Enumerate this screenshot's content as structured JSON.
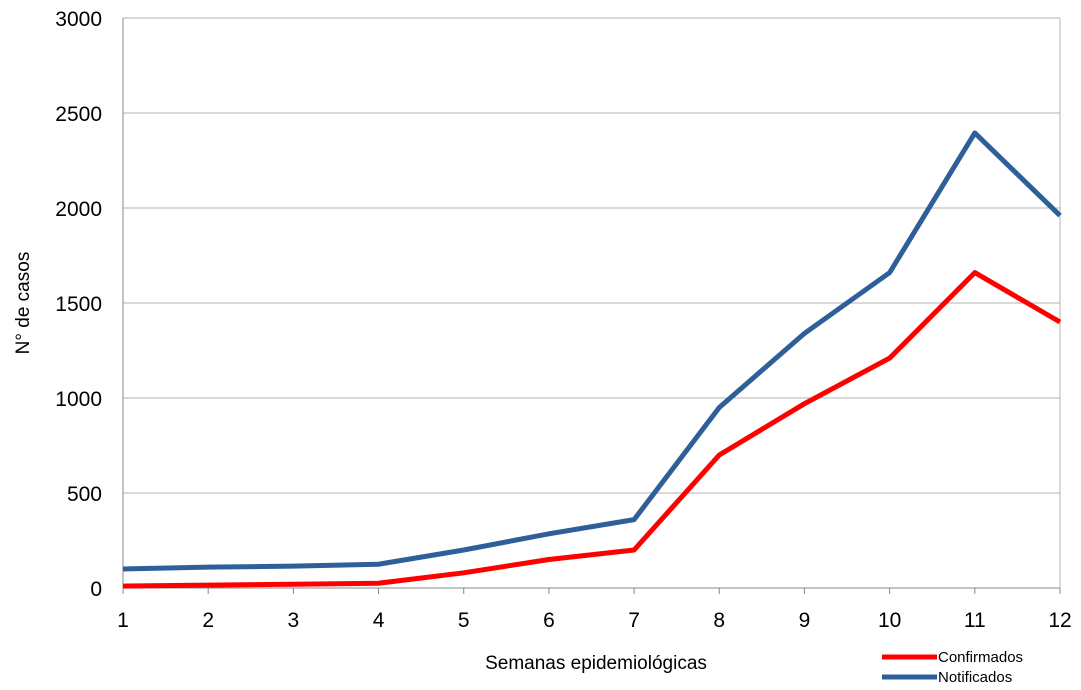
{
  "chart_data": {
    "type": "line",
    "title": "",
    "xlabel": "Semanas epidemiológicas",
    "ylabel": "N° de casos",
    "x": [
      1,
      2,
      3,
      4,
      5,
      6,
      7,
      8,
      9,
      10,
      11,
      12
    ],
    "x_tick_labels": [
      "1",
      "2",
      "3",
      "4",
      "5",
      "6",
      "7",
      "8",
      "9",
      "10",
      "11",
      "12"
    ],
    "y_tick_labels": [
      "0",
      "500",
      "1000",
      "1500",
      "2000",
      "2500",
      "3000"
    ],
    "ylim": [
      0,
      3000
    ],
    "xlim": [
      1,
      12
    ],
    "grid": "horizontal",
    "legend_position": "bottom-right",
    "series": [
      {
        "name": "Confirmados",
        "color": "#ff0000",
        "values": [
          10,
          15,
          20,
          25,
          80,
          150,
          200,
          700,
          970,
          1210,
          1660,
          1400
        ]
      },
      {
        "name": "Notificados",
        "color": "#2e5f98",
        "values": [
          100,
          110,
          115,
          125,
          200,
          285,
          360,
          950,
          1340,
          1660,
          2395,
          1960
        ]
      }
    ]
  }
}
